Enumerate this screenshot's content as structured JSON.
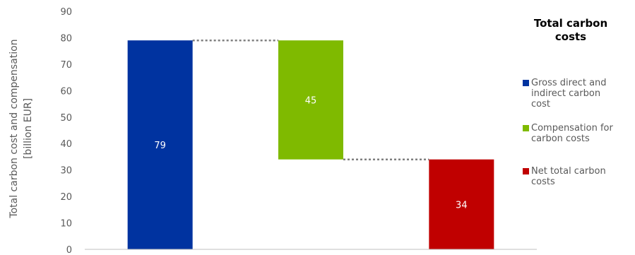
{
  "chart_data": {
    "type": "waterfall",
    "categories": [
      "Gross direct and indirect carbon cost",
      "Compensation for carbon costs",
      "Net total carbon costs"
    ],
    "values": [
      79,
      45,
      34
    ],
    "bars": [
      {
        "name": "Gross direct and indirect carbon cost",
        "start": 0,
        "end": 79,
        "value_label": "79",
        "color": "#0033a0"
      },
      {
        "name": "Compensation for carbon costs",
        "start": 34,
        "end": 79,
        "value_label": "45",
        "color": "#7fba00"
      },
      {
        "name": "Net total carbon costs",
        "start": 0,
        "end": 34,
        "value_label": "34",
        "color": "#c00000"
      }
    ],
    "ylabel": "Total carbon cost and compensation [billion EUR]",
    "ylabel_lines": [
      "Total carbon cost and compensation",
      "[billion  EUR]"
    ],
    "ylim": [
      0,
      90
    ],
    "yticks": [
      "0",
      "10",
      "20",
      "30",
      "40",
      "50",
      "60",
      "70",
      "80",
      "90"
    ],
    "grid": false,
    "connectors": "dotted",
    "legend_position": "right",
    "legend_title": "Total carbon costs"
  },
  "legend": {
    "title_lines": [
      "Total carbon",
      "costs"
    ],
    "items": [
      {
        "lines": [
          "Gross direct and",
          "indirect carbon",
          "cost"
        ],
        "color": "#0033a0"
      },
      {
        "lines": [
          "Compensation for",
          "carbon costs"
        ],
        "color": "#7fba00"
      },
      {
        "lines": [
          "Net total carbon",
          "costs"
        ],
        "color": "#c00000"
      }
    ]
  }
}
